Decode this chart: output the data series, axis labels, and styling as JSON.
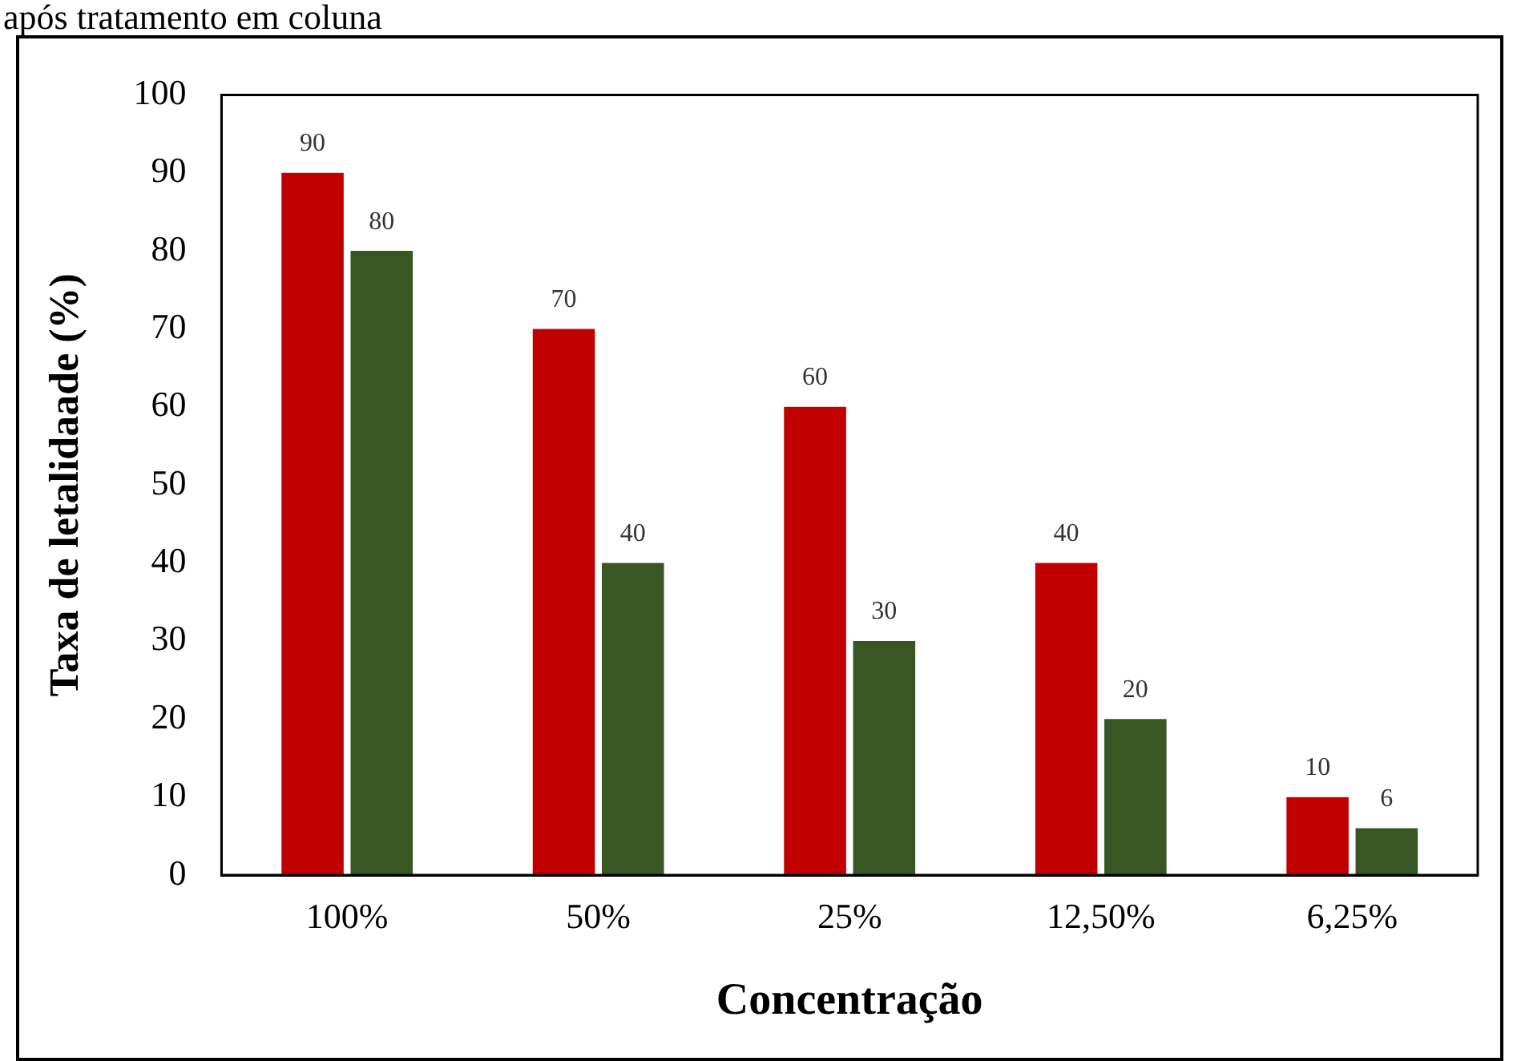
{
  "chart_data": {
    "type": "bar",
    "title": "após tratamento em coluna",
    "xlabel": "Concentração",
    "ylabel": "Taxa de letalidaade (%)",
    "categories": [
      "100%",
      "50%",
      "25%",
      "12,50%",
      "6,25%"
    ],
    "series": [
      {
        "color": "#c00000",
        "values": [
          90,
          70,
          60,
          40,
          10
        ]
      },
      {
        "color": "#385723",
        "values": [
          80,
          40,
          30,
          20,
          6
        ]
      }
    ],
    "ylim": [
      0,
      100
    ],
    "yticks": [
      0,
      10,
      20,
      30,
      40,
      50,
      60,
      70,
      80,
      90,
      100
    ],
    "grid": false,
    "legend": false,
    "data_labels": true
  }
}
